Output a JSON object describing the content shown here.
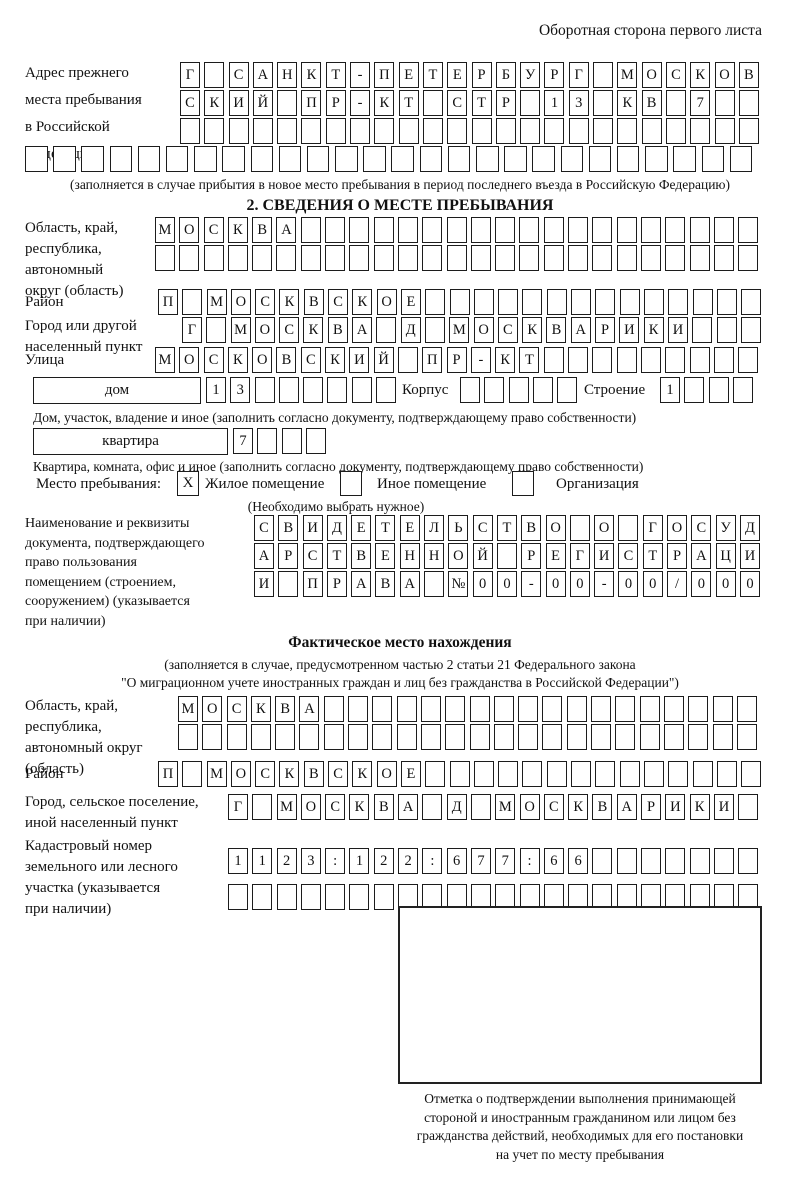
{
  "page": {
    "header_note": "Оборотная сторона первого листа"
  },
  "prev_address": {
    "label": [
      "Адрес прежнего",
      "места пребывания",
      "в Российской",
      "Федерации"
    ],
    "rows": [
      {
        "text": "Г САНКТ-ПЕТЕРБУРГ МОСКОВ",
        "len": 24
      },
      {
        "text": "СКИЙ ПР-КТ СТР 13 КВ 7",
        "len": 24
      },
      {
        "text": "",
        "len": 24
      },
      {
        "text": "",
        "len": 26
      }
    ],
    "caption": "(заполняется в случае прибытия в новое место пребывания в период последнего въезда в Российскую Федерацию)"
  },
  "section2": {
    "title": "2. СВЕДЕНИЯ О МЕСТЕ ПРЕБЫВАНИЯ",
    "oblast": {
      "label": [
        "Область, край,",
        "республика,",
        "автономный",
        "округ (область)"
      ],
      "rows": [
        {
          "text": "МОСКВА",
          "len": 25
        },
        {
          "text": "",
          "len": 25
        }
      ]
    },
    "raion": {
      "label": "Район",
      "row": {
        "text": "П МОСКВСКОЕ",
        "len": 25
      }
    },
    "gorod": {
      "label": [
        "Город или другой",
        "населенный пункт"
      ],
      "row": {
        "text": "Г МОСКВА Д МОСКВАРИКИ",
        "len": 24
      }
    },
    "ulitsa": {
      "label": "Улица",
      "row": {
        "text": "МОСКОВСКИЙ ПР-КТ",
        "len": 25
      }
    },
    "dom": {
      "box_label": "дом",
      "row": {
        "text": "13",
        "len": 8
      },
      "korpus_label": "Корпус",
      "korpus_row": {
        "text": "",
        "len": 5
      },
      "stroenie_label": "Строение",
      "stroenie_row": {
        "text": "1",
        "len": 4
      },
      "caption": "Дом, участок, владение и иное (заполнить согласно документу, подтверждающему право собственности)"
    },
    "kvartira": {
      "box_label": "квартира",
      "row": {
        "text": "7",
        "len": 4
      },
      "caption": "Квартира, комната, офис и иное (заполнить согласно документу, подтверждающему право собственности)"
    },
    "mesto": {
      "label": "Место пребывания:",
      "options": [
        {
          "label": "Жилое помещение",
          "checked": "X"
        },
        {
          "label": "Иное помещение",
          "checked": ""
        },
        {
          "label": "Организация",
          "checked": ""
        }
      ],
      "note": "(Необходимо выбрать нужное)"
    },
    "document": {
      "label": [
        "Наименование и реквизиты",
        "документа, подтверждающего",
        "право пользования",
        "помещением (строением,",
        "сооружением) (указывается",
        "при наличии)"
      ],
      "rows": [
        {
          "text": "СВИДЕТЕЛЬСТВО О ГОСУД",
          "len": 21
        },
        {
          "text": "АРСТВЕННОЙ РЕГИСТРАЦИ",
          "len": 21
        },
        {
          "text": "И ПРАВА №00-00-00/000",
          "len": 21
        }
      ]
    }
  },
  "actual_location": {
    "title": "Фактическое место нахождения",
    "subtitle": [
      "(заполняется в случае, предусмотренном частью 2 статьи 21 Федерального закона",
      "\"О миграционном учете иностранных граждан и лиц без гражданства в Российской Федерации\")"
    ],
    "oblast": {
      "label": [
        "Область, край,",
        "республика,",
        "автономный округ",
        "(область)"
      ],
      "rows": [
        {
          "text": "МОСКВА",
          "len": 24
        },
        {
          "text": "",
          "len": 24
        }
      ]
    },
    "raion": {
      "label": "Район",
      "row": {
        "text": "П МОСКВСКОЕ",
        "len": 25
      }
    },
    "gorod": {
      "label": [
        "Город, сельское поселение,",
        "иной населенный пункт"
      ],
      "row": {
        "text": "Г МОСКВА Д МОСКВАРИКИ",
        "len": 22
      }
    },
    "kadastr": {
      "label": [
        "Кадастровый номер",
        "земельного или лесного",
        "участка (указывается",
        "при наличии)"
      ],
      "rows": [
        {
          "text": "1123:122:677:66",
          "len": 22
        },
        {
          "text": "",
          "len": 22
        }
      ]
    },
    "stamp_caption": [
      "Отметка о подтверждении выполнения принимающей",
      "стороной и иностранным гражданином или лицом без",
      "гражданства действий, необходимых для его постановки",
      "на учет по месту пребывания"
    ]
  }
}
